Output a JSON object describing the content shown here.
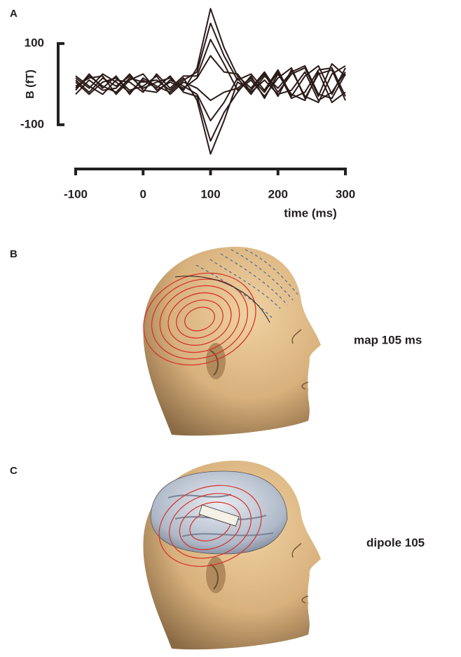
{
  "chart_data": {
    "type": "line",
    "panel_label": "A",
    "ylabel": "B (fT)",
    "xlabel": "time (ms)",
    "x": [
      -100,
      -80,
      -60,
      -40,
      -20,
      0,
      20,
      40,
      60,
      80,
      100,
      120,
      140,
      160,
      180,
      200,
      220,
      240,
      260,
      280,
      300
    ],
    "series": [
      {
        "color": "#2a1a17",
        "values": [
          10,
          -20,
          15,
          -5,
          20,
          -10,
          5,
          15,
          -15,
          40,
          186,
          90,
          20,
          -10,
          30,
          -20,
          25,
          40,
          -30,
          50,
          20
        ]
      },
      {
        "color": "#2a1a17",
        "values": [
          -15,
          25,
          -10,
          20,
          -25,
          15,
          -5,
          -20,
          10,
          30,
          150,
          70,
          10,
          25,
          -15,
          35,
          -30,
          20,
          45,
          -25,
          40
        ]
      },
      {
        "color": "#2a1a17",
        "values": [
          20,
          -5,
          -25,
          10,
          5,
          -20,
          25,
          -10,
          20,
          20,
          110,
          50,
          -15,
          10,
          -30,
          15,
          40,
          -35,
          25,
          35,
          -40
        ]
      },
      {
        "color": "#2a1a17",
        "values": [
          -5,
          15,
          20,
          -25,
          10,
          25,
          -15,
          5,
          -10,
          15,
          70,
          30,
          25,
          -20,
          10,
          -25,
          -15,
          30,
          -40,
          -20,
          30
        ]
      },
      {
        "color": "#2a1a17",
        "values": [
          5,
          -25,
          5,
          15,
          -15,
          -5,
          20,
          -25,
          5,
          -10,
          -40,
          -20,
          -10,
          15,
          -20,
          30,
          -35,
          -20,
          35,
          40,
          -30
        ]
      },
      {
        "color": "#2a1a17",
        "values": [
          -25,
          10,
          -15,
          -10,
          25,
          -15,
          -20,
          10,
          -5,
          -25,
          -90,
          -45,
          15,
          -25,
          20,
          -10,
          30,
          45,
          -25,
          -35,
          25
        ]
      },
      {
        "color": "#2a1a17",
        "values": [
          15,
          -10,
          25,
          5,
          -20,
          10,
          -10,
          20,
          -20,
          -30,
          -140,
          -70,
          -20,
          20,
          -35,
          25,
          -25,
          -40,
          30,
          -45,
          -20
        ]
      },
      {
        "color": "#2a1a17",
        "values": [
          -10,
          20,
          -5,
          -20,
          15,
          5,
          10,
          -15,
          15,
          -40,
          -172,
          -90,
          5,
          -15,
          25,
          -30,
          35,
          -30,
          -45,
          25,
          45
        ]
      }
    ],
    "xlim": [
      -100,
      300
    ],
    "xticks": [
      -100,
      0,
      100,
      200,
      300
    ],
    "ylim": [
      -190,
      190
    ],
    "yticks": [
      -100,
      100
    ]
  },
  "panels": [
    {
      "label": "B",
      "caption": "map 105 ms"
    },
    {
      "label": "C",
      "caption": "dipole 105"
    }
  ]
}
